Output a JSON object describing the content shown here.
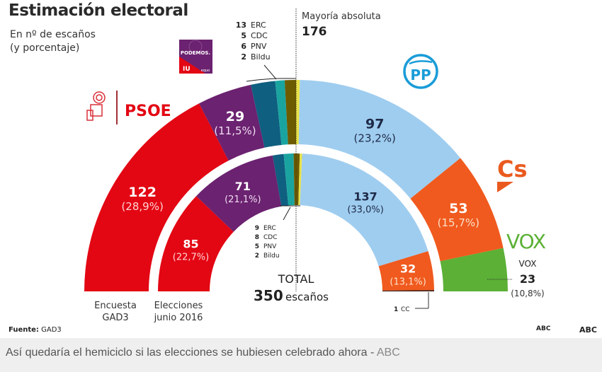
{
  "header": {
    "title": "Estimación electoral",
    "subtitle_line1": "En nº de escaños",
    "subtitle_line2": "(y porcentaje)"
  },
  "majority": {
    "label": "Mayoría absoluta",
    "value": "176"
  },
  "total": {
    "label": "TOTAL",
    "value": "350",
    "unit": "escaños"
  },
  "logos": {
    "psoe": "PSOE",
    "podemos": "PODEMOS.",
    "iu": "IU",
    "equo": "equo",
    "pp": "PP",
    "cs": "Cs",
    "vox": "VOX"
  },
  "footer": {
    "source_label": "Fuente:",
    "source_value": "GAD3",
    "abc_small": "ABC",
    "abc_large": "ABC"
  },
  "caption": {
    "text": "Así quedaría el hemiciclo si las elecciones se hubiesen celebrado ahora - ",
    "source": "ABC"
  },
  "chart_data": {
    "type": "pie",
    "subtype": "parliament-semicircle",
    "title": "Estimación electoral",
    "subtitle": "En nº de escaños (y porcentaje)",
    "total_seats": 350,
    "majority": 176,
    "rings": [
      {
        "name": "Encuesta GAD3",
        "label_line1": "Encuesta",
        "label_line2": "GAD3",
        "segments": [
          {
            "party": "PSOE",
            "seats": 122,
            "seats_label": "122",
            "pct_label": "(28,9%)",
            "color": "#e30613"
          },
          {
            "party": "Podemos",
            "seats": 29,
            "seats_label": "29",
            "pct_label": "(11,5%)",
            "color": "#6b2270"
          },
          {
            "party": "ERC",
            "seats": 13,
            "color": "#0f5f80"
          },
          {
            "party": "CDC",
            "seats": 5,
            "color": "#1aa4a0"
          },
          {
            "party": "PNV",
            "seats": 6,
            "color": "#6d5b00"
          },
          {
            "party": "Bildu",
            "seats": 2,
            "color": "#e8e24a"
          },
          {
            "party": "PP",
            "seats": 97,
            "seats_label": "97",
            "pct_label": "(23,2%)",
            "color": "#9fcdef"
          },
          {
            "party": "Cs",
            "seats": 53,
            "seats_label": "53",
            "pct_label": "(15,7%)",
            "color": "#f05a1e"
          },
          {
            "party": "VOX",
            "seats": 23,
            "color": "#5bb035"
          }
        ],
        "small_parties_legend": [
          {
            "seats": "13",
            "party": "ERC"
          },
          {
            "seats": "5",
            "party": "CDC"
          },
          {
            "seats": "6",
            "party": "PNV"
          },
          {
            "seats": "2",
            "party": "Bildu"
          }
        ],
        "vox_callout": {
          "party": "VOX",
          "seats": "23",
          "pct": "(10,8%)"
        }
      },
      {
        "name": "Elecciones junio 2016",
        "label_line1": "Elecciones",
        "label_line2": "junio 2016",
        "segments": [
          {
            "party": "PSOE",
            "seats": 85,
            "seats_label": "85",
            "pct_label": "(22,7%)",
            "color": "#e30613"
          },
          {
            "party": "Podemos",
            "seats": 71,
            "seats_label": "71",
            "pct_label": "(21,1%)",
            "color": "#6b2270"
          },
          {
            "party": "ERC",
            "seats": 9,
            "color": "#0f5f80"
          },
          {
            "party": "CDC",
            "seats": 8,
            "color": "#1aa4a0"
          },
          {
            "party": "PNV",
            "seats": 5,
            "color": "#6d5b00"
          },
          {
            "party": "Bildu",
            "seats": 2,
            "color": "#e8e24a"
          },
          {
            "party": "PP",
            "seats": 137,
            "seats_label": "137",
            "pct_label": "(33,0%)",
            "color": "#9fcdef"
          },
          {
            "party": "Cs",
            "seats": 32,
            "seats_label": "32",
            "pct_label": "(13,1%)",
            "color": "#f05a1e"
          },
          {
            "party": "CC",
            "seats": 1,
            "color": "#3a1a10"
          }
        ],
        "small_parties_legend": [
          {
            "seats": "9",
            "party": "ERC"
          },
          {
            "seats": "8",
            "party": "CDC"
          },
          {
            "seats": "5",
            "party": "PNV"
          },
          {
            "seats": "2",
            "party": "Bildu"
          }
        ],
        "cc_callout": {
          "seats": "1",
          "party": "CC"
        }
      }
    ]
  }
}
